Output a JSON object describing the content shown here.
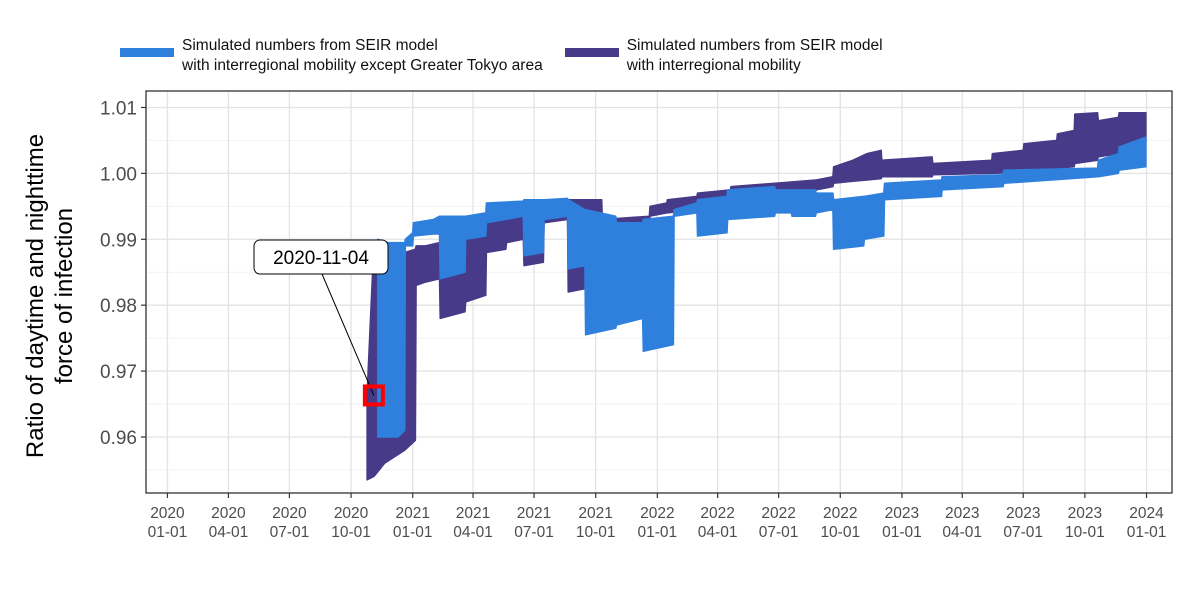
{
  "legend": {
    "items": [
      {
        "label": "Simulated numbers from SEIR model\nwith interregional mobility except Greater Tokyo area",
        "color": "#2f80dd"
      },
      {
        "label": "Simulated numbers from SEIR model\nwith interregional mobility",
        "color": "#473a88"
      }
    ]
  },
  "chart_data": {
    "type": "area",
    "ylabel": "Ratio of daytime and nighttime\nforce of infection",
    "xlabel": "",
    "x_ticks": [
      "2020\n01-01",
      "2020\n04-01",
      "2020\n07-01",
      "2020\n10-01",
      "2021\n01-01",
      "2021\n04-01",
      "2021\n07-01",
      "2021\n10-01",
      "2022\n01-01",
      "2022\n04-01",
      "2022\n07-01",
      "2022\n10-01",
      "2023\n01-01",
      "2023\n04-01",
      "2023\n07-01",
      "2023\n10-01",
      "2024\n01-01"
    ],
    "y_ticks": [
      "0.96",
      "0.97",
      "0.98",
      "0.99",
      "1.00",
      "1.01"
    ],
    "ylim": [
      0.9515,
      1.0125
    ],
    "xlim": [
      "2019-11-30",
      "2024-02-08"
    ],
    "grid": true,
    "legend_position": "top",
    "annotation": {
      "label": "2020-11-04",
      "date": "2020-11-04",
      "value": 0.9663,
      "marker_color": "#ff0000"
    },
    "series": [
      {
        "name": "Simulated numbers from SEIR model with interregional mobility",
        "color": "#473a88",
        "ranges": [
          [
            "2020-10-25",
            0.9535,
            0.9665
          ],
          [
            "2020-11-04",
            0.954,
            0.9895
          ],
          [
            "2020-11-20",
            0.956,
            0.988
          ],
          [
            "2020-12-05",
            0.957,
            0.988
          ],
          [
            "2020-12-20",
            0.958,
            0.988
          ],
          [
            "2021-01-05",
            0.9595,
            0.9885
          ],
          [
            "2021-01-06",
            0.983,
            0.989
          ],
          [
            "2021-01-20",
            0.9835,
            0.989
          ],
          [
            "2021-02-10",
            0.984,
            0.9895
          ],
          [
            "2021-02-11",
            0.978,
            0.9895
          ],
          [
            "2021-03-20",
            0.979,
            0.99
          ],
          [
            "2021-03-21",
            0.9805,
            0.991
          ],
          [
            "2021-04-20",
            0.9815,
            0.9915
          ],
          [
            "2021-04-21",
            0.988,
            0.994
          ],
          [
            "2021-05-20",
            0.9885,
            0.9945
          ],
          [
            "2021-05-21",
            0.9895,
            0.9945
          ],
          [
            "2021-06-15",
            0.99,
            0.995
          ],
          [
            "2021-06-16",
            0.986,
            0.995
          ],
          [
            "2021-07-15",
            0.9865,
            0.995
          ],
          [
            "2021-07-16",
            0.9925,
            0.9955
          ],
          [
            "2021-08-20",
            0.993,
            0.9955
          ],
          [
            "2021-08-21",
            0.982,
            0.996
          ],
          [
            "2021-10-10",
            0.983,
            0.996
          ],
          [
            "2021-10-11",
            0.984,
            0.993
          ],
          [
            "2021-12-20",
            0.985,
            0.9935
          ],
          [
            "2021-12-21",
            0.9935,
            0.995
          ],
          [
            "2022-01-15",
            0.994,
            0.9955
          ],
          [
            "2022-01-16",
            0.994,
            0.996
          ],
          [
            "2022-03-01",
            0.9945,
            0.9965
          ],
          [
            "2022-03-02",
            0.9945,
            0.997
          ],
          [
            "2022-04-20",
            0.995,
            0.9975
          ],
          [
            "2022-04-21",
            0.996,
            0.998
          ],
          [
            "2022-06-25",
            0.9965,
            0.9985
          ],
          [
            "2022-06-26",
            0.997,
            0.9985
          ],
          [
            "2022-08-25",
            0.9975,
            0.999
          ],
          [
            "2022-08-26",
            0.9975,
            0.999
          ],
          [
            "2022-09-20",
            0.998,
            0.9995
          ],
          [
            "2022-09-21",
            0.9985,
            1.001
          ],
          [
            "2022-10-20",
            0.9988,
            1.002
          ],
          [
            "2022-11-10",
            0.999,
            1.003
          ],
          [
            "2022-12-01",
            0.9992,
            1.0035
          ],
          [
            "2022-12-02",
            0.9995,
            1.002
          ],
          [
            "2023-02-15",
            0.9995,
            1.0025
          ],
          [
            "2023-02-16",
            0.9998,
            1.0015
          ],
          [
            "2023-05-15",
            1.0,
            1.002
          ],
          [
            "2023-05-16",
            1.0,
            1.003
          ],
          [
            "2023-07-01",
            1.0002,
            1.0035
          ],
          [
            "2023-07-02",
            1.0003,
            1.0045
          ],
          [
            "2023-08-20",
            1.0005,
            1.005
          ],
          [
            "2023-08-21",
            1.0008,
            1.006
          ],
          [
            "2023-09-15",
            1.001,
            1.0065
          ],
          [
            "2023-09-16",
            1.0015,
            1.009
          ],
          [
            "2023-10-20",
            1.002,
            1.0092
          ],
          [
            "2023-10-21",
            1.0025,
            1.008
          ],
          [
            "2023-11-20",
            1.003,
            1.0085
          ],
          [
            "2023-11-21",
            1.004,
            1.0092
          ],
          [
            "2023-12-31",
            1.0048,
            1.0092
          ]
        ]
      },
      {
        "name": "Simulated numbers from SEIR model with interregional mobility except Greater Tokyo area",
        "color": "#2f80dd",
        "ranges": [
          [
            "2020-11-10",
            0.96,
            0.99
          ],
          [
            "2020-11-25",
            0.96,
            0.9895
          ],
          [
            "2020-12-10",
            0.96,
            0.9895
          ],
          [
            "2020-12-20",
            0.961,
            0.9895
          ],
          [
            "2020-12-21",
            0.989,
            0.99
          ],
          [
            "2021-01-01",
            0.989,
            0.991
          ],
          [
            "2021-01-02",
            0.9905,
            0.9925
          ],
          [
            "2021-02-01",
            0.9908,
            0.993
          ],
          [
            "2021-02-10",
            0.9908,
            0.9935
          ],
          [
            "2021-02-11",
            0.984,
            0.9935
          ],
          [
            "2021-03-20",
            0.985,
            0.9935
          ],
          [
            "2021-03-21",
            0.99,
            0.9935
          ],
          [
            "2021-04-20",
            0.9905,
            0.994
          ],
          [
            "2021-04-21",
            0.9925,
            0.9955
          ],
          [
            "2021-06-15",
            0.9935,
            0.9958
          ],
          [
            "2021-06-16",
            0.9875,
            0.996
          ],
          [
            "2021-07-15",
            0.988,
            0.996
          ],
          [
            "2021-07-16",
            0.993,
            0.996
          ],
          [
            "2021-08-20",
            0.9935,
            0.9962
          ],
          [
            "2021-08-21",
            0.9855,
            0.996
          ],
          [
            "2021-09-15",
            0.986,
            0.9945
          ],
          [
            "2021-09-16",
            0.9755,
            0.9945
          ],
          [
            "2021-10-31",
            0.9765,
            0.9935
          ],
          [
            "2021-11-01",
            0.977,
            0.9925
          ],
          [
            "2021-12-10",
            0.978,
            0.9925
          ],
          [
            "2021-12-11",
            0.973,
            0.993
          ],
          [
            "2022-01-25",
            0.974,
            0.9935
          ],
          [
            "2022-01-26",
            0.9935,
            0.9945
          ],
          [
            "2022-03-01",
            0.994,
            0.9955
          ],
          [
            "2022-03-02",
            0.9905,
            0.996
          ],
          [
            "2022-04-15",
            0.991,
            0.9965
          ],
          [
            "2022-04-16",
            0.993,
            0.9975
          ],
          [
            "2022-06-25",
            0.9935,
            0.998
          ],
          [
            "2022-06-26",
            0.994,
            0.9975
          ],
          [
            "2022-07-20",
            0.994,
            0.9975
          ],
          [
            "2022-07-21",
            0.9935,
            0.9975
          ],
          [
            "2022-08-25",
            0.9935,
            0.9975
          ],
          [
            "2022-08-26",
            0.994,
            0.997
          ],
          [
            "2022-09-20",
            0.9945,
            0.997
          ],
          [
            "2022-09-21",
            0.9885,
            0.996
          ],
          [
            "2022-11-05",
            0.989,
            0.9965
          ],
          [
            "2022-11-06",
            0.99,
            0.9965
          ],
          [
            "2022-12-05",
            0.9905,
            0.997
          ],
          [
            "2022-12-06",
            0.996,
            0.9985
          ],
          [
            "2023-03-01",
            0.9965,
            0.999
          ],
          [
            "2023-03-02",
            0.9975,
            0.9995
          ],
          [
            "2023-06-01",
            0.998,
            0.9998
          ],
          [
            "2023-06-02",
            0.9985,
            1.0005
          ],
          [
            "2023-10-20",
            0.9995,
            1.0008
          ],
          [
            "2023-10-21",
            0.9995,
            1.002
          ],
          [
            "2023-11-20",
            1.0,
            1.003
          ],
          [
            "2023-11-21",
            1.0005,
            1.004
          ],
          [
            "2023-12-31",
            1.001,
            1.0055
          ]
        ]
      }
    ]
  }
}
